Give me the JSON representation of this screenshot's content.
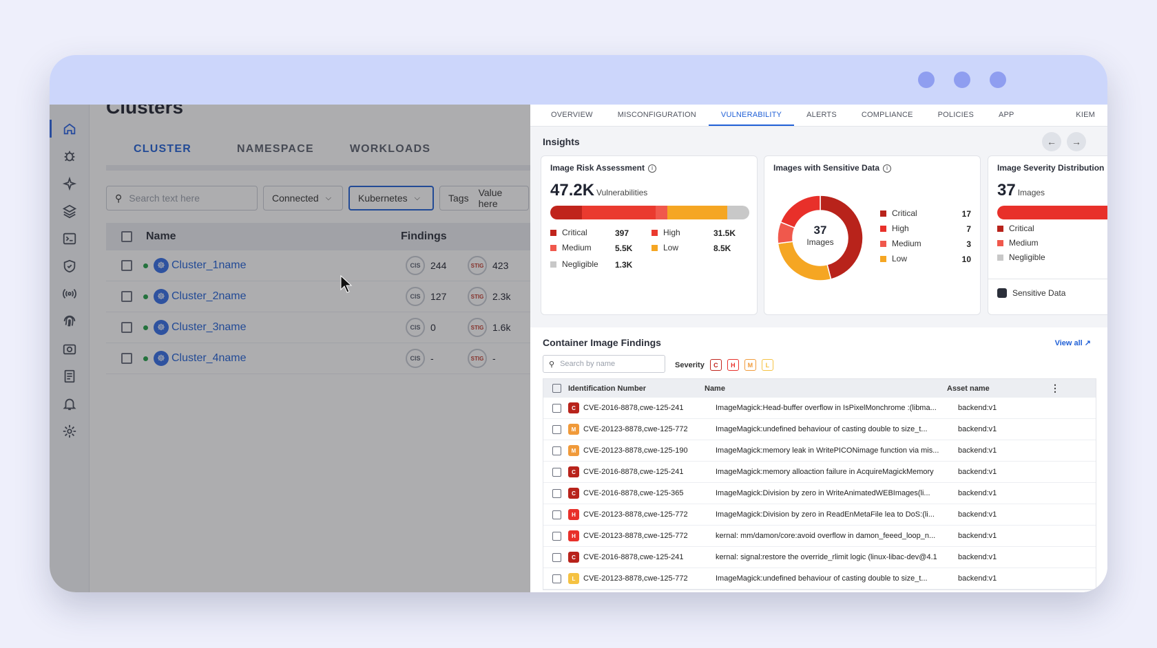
{
  "page": {
    "title": "Clusters"
  },
  "window": {
    "dots": 3
  },
  "left_tabs": [
    "CLUSTER",
    "NAMESPACE",
    "WORKLOADS"
  ],
  "filters": {
    "search_placeholder": "Search text here",
    "connected": "Connected",
    "kubernetes": "Kubernetes",
    "tags_label": "Tags",
    "tags_value": "Value here"
  },
  "cluster_table": {
    "headers": {
      "name": "Name",
      "findings": "Findings"
    },
    "rows": [
      {
        "name": "Cluster_1name",
        "cis_label": "CIS",
        "cis": "244",
        "stig_label": "STIG",
        "stig": "423"
      },
      {
        "name": "Cluster_2name",
        "cis_label": "CIS",
        "cis": "127",
        "stig_label": "STIG",
        "stig": "2.3k"
      },
      {
        "name": "Cluster_3name",
        "cis_label": "CIS",
        "cis": "0",
        "stig_label": "STIG",
        "stig": "1.6k"
      },
      {
        "name": "Cluster_4name",
        "cis_label": "CIS",
        "cis": "-",
        "stig_label": "STIG",
        "stig": "-"
      }
    ]
  },
  "panel_tabs": [
    "OVERVIEW",
    "MISCONFIGURATION",
    "VULNERABILITY",
    "ALERTS",
    "COMPLIANCE",
    "POLICIES",
    "APP BEHAVIOUR",
    "KIEM"
  ],
  "insights": {
    "title": "Insights",
    "risk": {
      "title": "Image Risk Assessment",
      "value": "47.2K",
      "unit": "Vulnerabilities",
      "legend": [
        {
          "label": "Critical",
          "value": "397",
          "color": "#c0241c"
        },
        {
          "label": "High",
          "value": "31.5K",
          "color": "#ea3a2f"
        },
        {
          "label": "Medium",
          "value": "5.5K",
          "color": "#f0584c"
        },
        {
          "label": "Low",
          "value": "8.5K",
          "color": "#f5a623"
        },
        {
          "label": "Negligible",
          "value": "1.3K",
          "color": "#c8c8c8"
        }
      ]
    },
    "sensitive": {
      "title": "Images with Sensitive Data",
      "center_value": "37",
      "center_label": "Images",
      "legend": [
        {
          "label": "Critical",
          "value": 17,
          "color": "#b8231b"
        },
        {
          "label": "High",
          "value": 7,
          "color": "#e8302a"
        },
        {
          "label": "Medium",
          "value": 3,
          "color": "#f0584c"
        },
        {
          "label": "Low",
          "value": 10,
          "color": "#f5a623"
        }
      ]
    },
    "severity": {
      "title": "Image Severity Distribution",
      "value": "37",
      "unit": "Images",
      "legend": [
        "Critical",
        "Medium",
        "Negligible"
      ],
      "footer": "Sensitive Data"
    }
  },
  "findings": {
    "title": "Container Image Findings",
    "view_all": "View all",
    "search_placeholder": "Search by name",
    "severity_label": "Severity",
    "chips": [
      "C",
      "H",
      "M",
      "L"
    ],
    "headers": {
      "id": "Identification Number",
      "name": "Name",
      "asset": "Asset name"
    },
    "rows": [
      {
        "sev": "C",
        "id": "CVE-2016-8878,cwe-125-241",
        "name": "ImageMagick:Head-buffer overflow in IsPixelMonchrome :(libma...",
        "asset": "backend:v1"
      },
      {
        "sev": "M",
        "id": "CVE-20123-8878,cwe-125-772",
        "name": "ImageMagick:undefined behaviour of casting double to size_t...",
        "asset": "backend:v1"
      },
      {
        "sev": "M",
        "id": "CVE-20123-8878,cwe-125-190",
        "name": "ImageMagick:memory leak in WritePICONimage function via mis...",
        "asset": "backend:v1"
      },
      {
        "sev": "C",
        "id": "CVE-2016-8878,cwe-125-241",
        "name": "ImageMagick:memory alloaction failure in AcquireMagickMemory",
        "asset": "backend:v1"
      },
      {
        "sev": "C",
        "id": "CVE-2016-8878,cwe-125-365",
        "name": "ImageMagick:Division by zero in WriteAnimatedWEBImages(li...",
        "asset": "backend:v1"
      },
      {
        "sev": "H",
        "id": "CVE-20123-8878,cwe-125-772",
        "name": "ImageMagick:Division by zero in ReadEnMetaFile lea to DoS:(li...",
        "asset": "backend:v1"
      },
      {
        "sev": "H",
        "id": "CVE-20123-8878,cwe-125-772",
        "name": "kernal: mm/damon/core:avoid overflow in damon_feeed_loop_n...",
        "asset": "backend:v1"
      },
      {
        "sev": "C",
        "id": "CVE-2016-8878,cwe-125-241",
        "name": "kernal: signal:restore the override_rlimit logic (linux-libac-dev@4.1",
        "asset": "backend:v1"
      },
      {
        "sev": "L",
        "id": "CVE-20123-8878,cwe-125-772",
        "name": "ImageMagick:undefined behaviour of casting double to size_t...",
        "asset": "backend:v1"
      }
    ]
  },
  "colors": {
    "accent": "#1f5fd6",
    "critical": "#b8231b",
    "high": "#e8302a",
    "medium": "#f09a3a",
    "low": "#f5c242"
  }
}
